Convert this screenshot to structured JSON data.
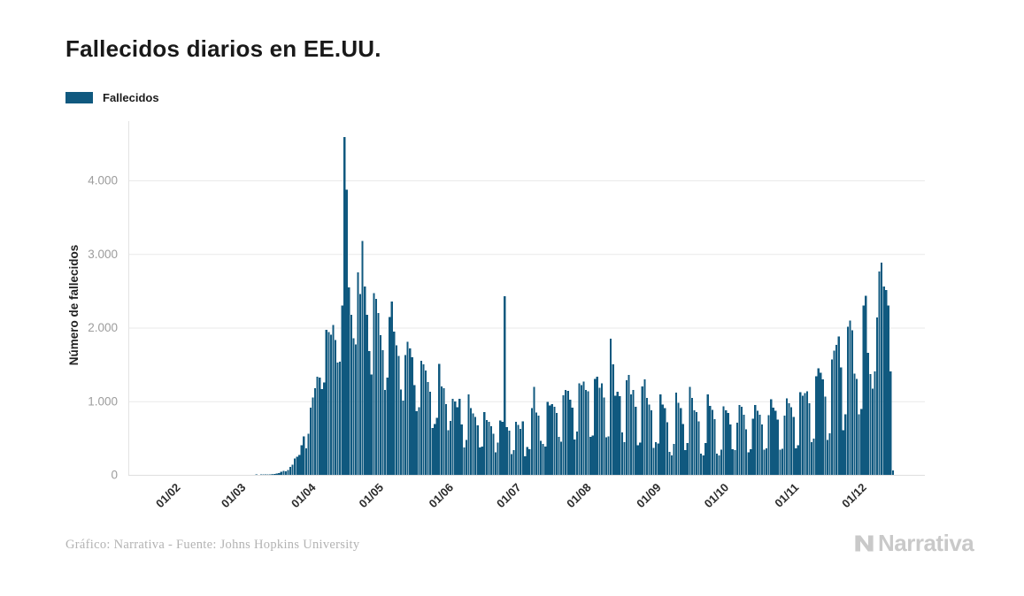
{
  "header": {
    "title": "Fallecidos diarios en EE.UU."
  },
  "legend": {
    "label": "Fallecidos",
    "color": "#10597f"
  },
  "footer": {
    "credit": "Gráfico: Narrativa - Fuente: Johns Hopkins University",
    "brand": "Narrativa",
    "brand_icon": "narrativa-n-mark",
    "brand_color": "#c9c9c9"
  },
  "colors": {
    "bar": "#10597f",
    "grid": "#e9e9e9",
    "axis": "#dedede",
    "y_tick_text": "#9c9c9c",
    "x_tick_text": "#2b2b2b",
    "title_text": "#191919"
  },
  "chart_data": {
    "type": "bar",
    "title": "Fallecidos diarios en EE.UU.",
    "xlabel": "",
    "ylabel": "Número de fallecidos",
    "legend_entries": [
      "Fallecidos"
    ],
    "legend_position": "top-left",
    "grid": "horizontal",
    "ylim": [
      0,
      4770
    ],
    "y_ticks": [
      {
        "value": 0,
        "label": "0"
      },
      {
        "value": 1000,
        "label": "1.000"
      },
      {
        "value": 2000,
        "label": "2.000"
      },
      {
        "value": 3000,
        "label": "3.000"
      },
      {
        "value": 4000,
        "label": "4.000"
      }
    ],
    "x_tick_labels": [
      "01/02",
      "01/03",
      "01/04",
      "01/05",
      "01/06",
      "01/07",
      "01/08",
      "01/09",
      "01/10",
      "01/11",
      "01/12"
    ],
    "x_tick_day_offsets": [
      10,
      39,
      70,
      100,
      131,
      161,
      192,
      223,
      253,
      284,
      314
    ],
    "frequency": "daily",
    "start_date": "2020-01-22",
    "end_date": "2020-12-14",
    "values": [
      0,
      0,
      0,
      0,
      0,
      0,
      0,
      0,
      0,
      0,
      0,
      0,
      0,
      0,
      0,
      0,
      0,
      0,
      0,
      0,
      0,
      0,
      0,
      0,
      0,
      0,
      0,
      0,
      0,
      0,
      0,
      0,
      0,
      0,
      0,
      0,
      0,
      0,
      1,
      1,
      0,
      2,
      3,
      2,
      2,
      4,
      3,
      4,
      4,
      4,
      7,
      6,
      10,
      11,
      18,
      23,
      41,
      57,
      49,
      64,
      110,
      141,
      225,
      247,
      268,
      401,
      525,
      363,
      558,
      912,
      1049,
      1176,
      1331,
      1320,
      1165,
      1255,
      1970,
      1940,
      1906,
      2035,
      1830,
      1528,
      1535,
      2299,
      4591,
      3872,
      2546,
      2172,
      1856,
      1772,
      2748,
      2458,
      3176,
      2556,
      2173,
      1679,
      1366,
      2470,
      2390,
      2201,
      1897,
      1691,
      1154,
      1324,
      2144,
      2353,
      1947,
      1760,
      1617,
      1158,
      1008,
      1630,
      1806,
      1715,
      1595,
      1218,
      865,
      921,
      1552,
      1500,
      1418,
      1260,
      1129,
      638,
      693,
      774,
      1505,
      1199,
      1175,
      960,
      605,
      730,
      1031,
      995,
      921,
      1036,
      685,
      373,
      476,
      1093,
      905,
      834,
      789,
      673,
      373,
      382,
      851,
      744,
      722,
      660,
      560,
      306,
      437,
      739,
      722,
      2425,
      648,
      601,
      285,
      335,
      721,
      679,
      625,
      729,
      254,
      380,
      351,
      908,
      1195,
      849,
      804,
      465,
      420,
      383,
      993,
      941,
      963,
      925,
      843,
      516,
      451,
      1082,
      1156,
      1140,
      1019,
      910,
      483,
      586,
      1244,
      1221,
      1268,
      1156,
      1134,
      515,
      536,
      1302,
      1334,
      1185,
      1244,
      1049,
      510,
      525,
      1850,
      1499,
      1076,
      1130,
      1070,
      576,
      446,
      1284,
      1355,
      1093,
      1153,
      922,
      404,
      439,
      1201,
      1298,
      1043,
      953,
      875,
      368,
      445,
      427,
      1094,
      958,
      906,
      717,
      311,
      267,
      422,
      1115,
      978,
      909,
      691,
      336,
      430,
      1197,
      1048,
      877,
      850,
      724,
      287,
      263,
      432,
      1093,
      939,
      880,
      756,
      287,
      263,
      344,
      933,
      874,
      840,
      684,
      351,
      336,
      709,
      952,
      926,
      814,
      620,
      309,
      346,
      763,
      949,
      869,
      816,
      682,
      340,
      358,
      809,
      1026,
      912,
      873,
      750,
      340,
      355,
      804,
      1042,
      971,
      918,
      784,
      362,
      404,
      1122,
      1077,
      1114,
      1135,
      972,
      444,
      495,
      1340,
      1445,
      1389,
      1296,
      1062,
      472,
      564,
      1566,
      1688,
      1767,
      1878,
      1457,
      609,
      822,
      2015,
      2097,
      1962,
      1374,
      1305,
      822,
      897,
      2300,
      2430,
      1660,
      1370,
      1172,
      1404,
      2140,
      2760,
      2880,
      2560,
      2510,
      2300,
      1404,
      60
    ]
  }
}
